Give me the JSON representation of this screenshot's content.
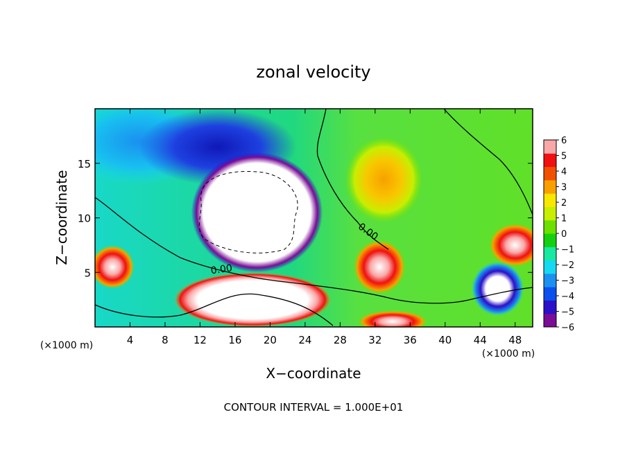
{
  "chart_data": {
    "type": "heatmap",
    "title": "zonal velocity",
    "xlabel": "X−coordinate",
    "ylabel": "Z−coordinate",
    "x_unit_left": "(×1000 m)",
    "x_unit_right": "(×1000 m)",
    "xlim": [
      0,
      50
    ],
    "ylim": [
      0,
      20
    ],
    "x_ticks": [
      4,
      8,
      12,
      16,
      20,
      24,
      28,
      32,
      36,
      40,
      44,
      48
    ],
    "y_ticks": [
      5,
      10,
      15
    ],
    "colorbar": {
      "range": [
        -6,
        6
      ],
      "tick_values": [
        6,
        5,
        4,
        3,
        2,
        1,
        0,
        -1,
        -2,
        -3,
        -4,
        -5,
        -6
      ],
      "tick_labels": [
        "6",
        "5",
        "4",
        "3",
        "2",
        "1",
        "0",
        "−1",
        "−2",
        "−3",
        "−4",
        "−5",
        "−6"
      ],
      "colors": [
        "#7a0c96",
        "#2a10c8",
        "#0a50ee",
        "#1a90f0",
        "#16d8f0",
        "#18e8a0",
        "#14d010",
        "#6ce000",
        "#c8ee00",
        "#f8e800",
        "#f8a000",
        "#f05000",
        "#f01010",
        "#f8a8a8"
      ]
    },
    "contour_labels": [
      "0.00",
      "0.00"
    ],
    "footer": "CONTOUR INTERVAL = 1.000E+01",
    "features": [
      {
        "kind": "blob",
        "value": -7,
        "cx": 18.5,
        "cy": 10.5,
        "rx": 7.5,
        "ry": 5.5
      },
      {
        "kind": "blob",
        "value": -4.5,
        "cx": 14,
        "cy": 16.5,
        "rx": 9,
        "ry": 3.5
      },
      {
        "kind": "blob",
        "value": -3,
        "cx": 5,
        "cy": 17,
        "rx": 9,
        "ry": 4
      },
      {
        "kind": "blob",
        "value": 3,
        "cx": 33,
        "cy": 13.5,
        "rx": 4.5,
        "ry": 4
      },
      {
        "kind": "blob",
        "value": 5,
        "cx": 32.5,
        "cy": 5.5,
        "rx": 3,
        "ry": 2.5
      },
      {
        "kind": "blob",
        "value": 7,
        "cx": 18,
        "cy": 2.5,
        "rx": 9,
        "ry": 2.5
      },
      {
        "kind": "blob",
        "value": 6,
        "cx": 2,
        "cy": 5.5,
        "rx": 2.5,
        "ry": 2
      },
      {
        "kind": "blob",
        "value": 5,
        "cx": 48,
        "cy": 7.5,
        "rx": 3,
        "ry": 2
      },
      {
        "kind": "blob",
        "value": -5,
        "cx": 46,
        "cy": 3.5,
        "rx": 3,
        "ry": 2.5
      },
      {
        "kind": "blob",
        "value": 6,
        "cx": 34,
        "cy": 0.5,
        "rx": 4,
        "ry": 1
      }
    ]
  }
}
